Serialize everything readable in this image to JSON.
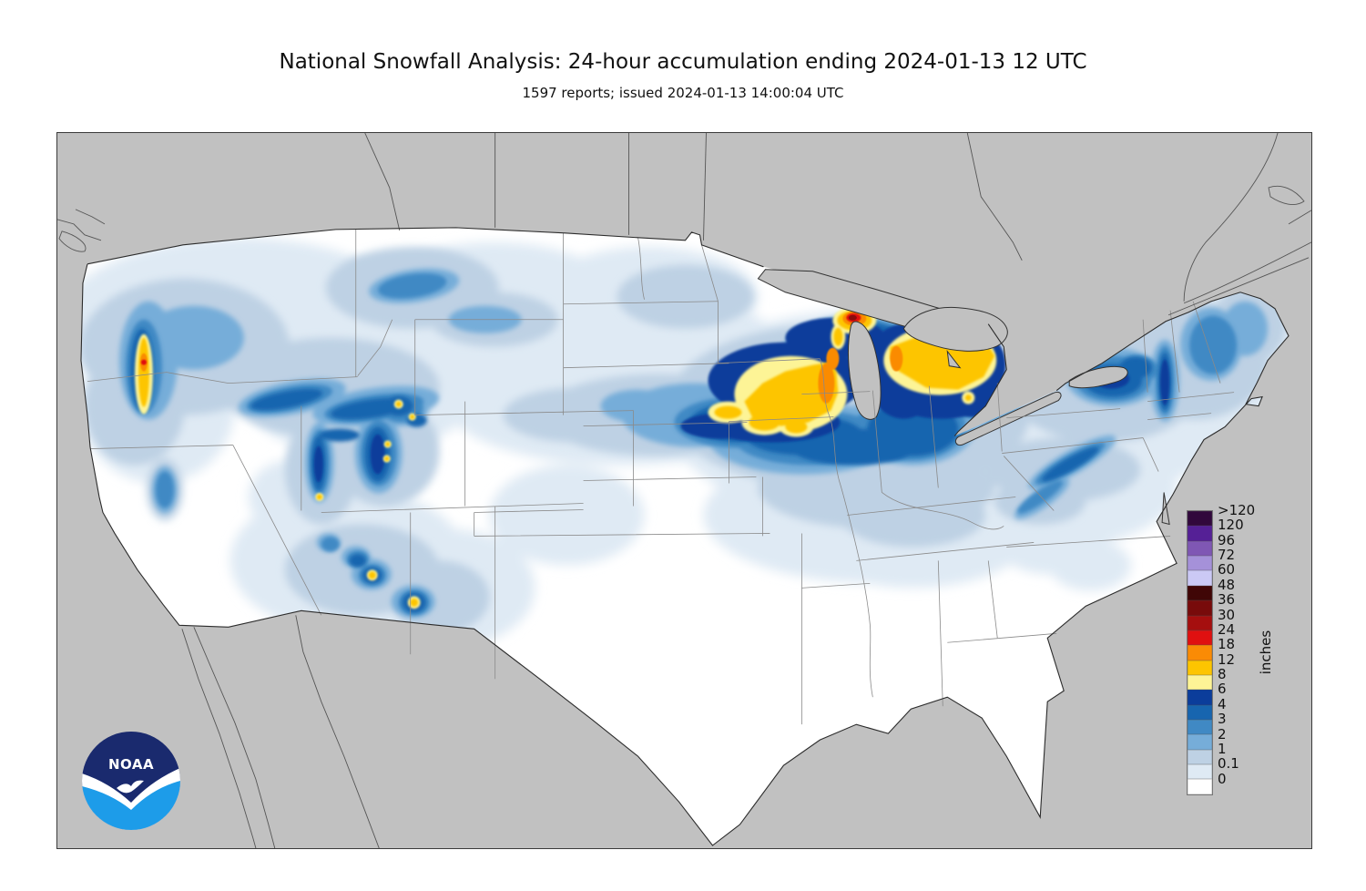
{
  "header": {
    "title": "National Snowfall Analysis: 24-hour accumulation ending 2024-01-13 12 UTC",
    "subtitle": "1597 reports; issued 2024-01-13 14:00:04 UTC"
  },
  "legend": {
    "units": "inches",
    "entries": [
      {
        "label": ">120",
        "color": "#31083c"
      },
      {
        "label": "120",
        "color": "#552096"
      },
      {
        "label": "96",
        "color": "#7f57b4"
      },
      {
        "label": "72",
        "color": "#a591d9"
      },
      {
        "label": "60",
        "color": "#cbc9f5"
      },
      {
        "label": "48",
        "color": "#400606"
      },
      {
        "label": "36",
        "color": "#780b0b"
      },
      {
        "label": "30",
        "color": "#a50f0f"
      },
      {
        "label": "24",
        "color": "#e01010"
      },
      {
        "label": "18",
        "color": "#fa8b05"
      },
      {
        "label": "12",
        "color": "#fdc500"
      },
      {
        "label": "8",
        "color": "#fdf496"
      },
      {
        "label": "6",
        "color": "#0b3d9b"
      },
      {
        "label": "4",
        "color": "#1765af"
      },
      {
        "label": "3",
        "color": "#4089c4"
      },
      {
        "label": "2",
        "color": "#76add9"
      },
      {
        "label": "1",
        "color": "#bed1e4"
      },
      {
        "label": "0.1",
        "color": "#dfeaf4"
      },
      {
        "label": "0",
        "color": "#ffffff"
      }
    ]
  },
  "map": {
    "ocean_color": "#c1c1c1",
    "land_color": "#ffffff",
    "noaa_logo": {
      "text": "NOAA",
      "dark_blue": "#1a2a6e",
      "light_blue": "#1d9ce9"
    }
  }
}
